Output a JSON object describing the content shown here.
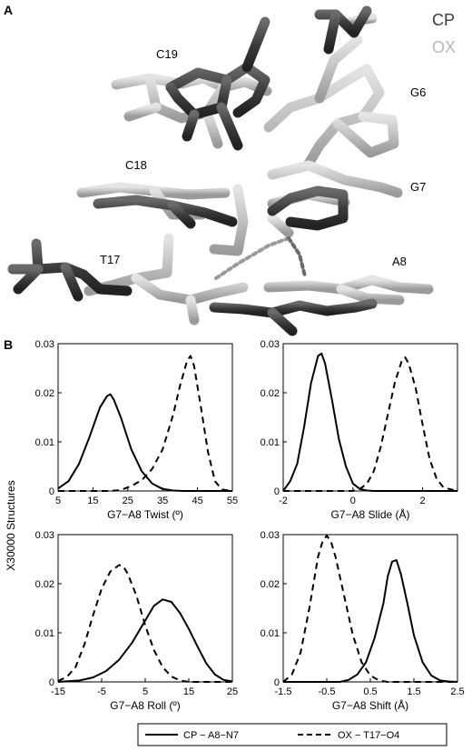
{
  "panel_a": {
    "letter": "A",
    "legend": [
      {
        "label": "CP",
        "color": "#3a3a3a"
      },
      {
        "label": "OX",
        "color": "#b8b8b8"
      }
    ],
    "residue_labels": [
      "C19",
      "G6",
      "C18",
      "G7",
      "T17",
      "A8"
    ]
  },
  "panel_b": {
    "letter": "B",
    "ylabel": "X30000 Structures"
  },
  "legend": {
    "items": [
      {
        "label": "CP − A8−N7",
        "style": "solid"
      },
      {
        "label": "OX − T17−O4",
        "style": "dashed"
      }
    ]
  },
  "chart_data": [
    {
      "type": "line",
      "xlabel": "G7−A8 Twist (º)",
      "xlim": [
        5,
        55
      ],
      "xticks": [
        5,
        15,
        25,
        35,
        45,
        55
      ],
      "ylim": [
        0,
        0.03
      ],
      "yticks": [
        "0",
        "0.01",
        "0.02",
        "0.03"
      ],
      "series": [
        {
          "style": "solid",
          "x": [
            5,
            8,
            11,
            14,
            17,
            19,
            20,
            21,
            23,
            26,
            29,
            32,
            35,
            38,
            41,
            44,
            47,
            50,
            53,
            55
          ],
          "y": [
            0.0005,
            0.002,
            0.0055,
            0.011,
            0.017,
            0.0193,
            0.0197,
            0.0186,
            0.015,
            0.0085,
            0.004,
            0.0015,
            0.0004,
            0.0001,
            0,
            0,
            0,
            0,
            0,
            0
          ]
        },
        {
          "style": "dashed",
          "x": [
            5,
            15,
            20,
            23,
            26,
            29,
            32,
            35,
            38,
            40,
            42,
            43,
            44,
            46,
            48,
            50,
            52,
            55
          ],
          "y": [
            0,
            0,
            0,
            0.0002,
            0.001,
            0.0022,
            0.0045,
            0.0085,
            0.0155,
            0.0215,
            0.0265,
            0.0275,
            0.0255,
            0.017,
            0.008,
            0.002,
            0.0003,
            0
          ]
        }
      ]
    },
    {
      "type": "line",
      "xlabel": "G7−A8 Slide (Å)",
      "xlim": [
        -2,
        3
      ],
      "xticks": [
        -2,
        0,
        2
      ],
      "ylim": [
        0,
        0.03
      ],
      "yticks": [
        "0",
        "0.01",
        "0.02",
        "0.03"
      ],
      "series": [
        {
          "style": "solid",
          "x": [
            -2,
            -1.8,
            -1.6,
            -1.4,
            -1.2,
            -1.0,
            -0.9,
            -0.8,
            -0.6,
            -0.4,
            -0.2,
            0.0,
            0.2,
            0.4,
            0.6,
            3
          ],
          "y": [
            0,
            0.002,
            0.0055,
            0.013,
            0.022,
            0.0275,
            0.028,
            0.026,
            0.0185,
            0.0105,
            0.005,
            0.0015,
            0.0004,
            0.0001,
            0,
            0
          ]
        },
        {
          "style": "dashed",
          "x": [
            -2,
            0,
            0.2,
            0.4,
            0.6,
            0.8,
            1.0,
            1.2,
            1.4,
            1.5,
            1.6,
            1.8,
            2.0,
            2.2,
            2.4,
            2.6,
            3
          ],
          "y": [
            0,
            0,
            0.0004,
            0.0015,
            0.004,
            0.009,
            0.0155,
            0.022,
            0.0265,
            0.0272,
            0.026,
            0.021,
            0.0135,
            0.0065,
            0.0025,
            0.0007,
            0
          ]
        }
      ]
    },
    {
      "type": "line",
      "xlabel": "G7−A8 Roll (º)",
      "xlim": [
        -15,
        25
      ],
      "xticks": [
        -15,
        -5,
        5,
        15,
        25
      ],
      "ylim": [
        0,
        0.03
      ],
      "yticks": [
        "0",
        "0.01",
        "0.02",
        "0.03"
      ],
      "series": [
        {
          "style": "solid",
          "x": [
            -15,
            -10,
            -7,
            -4,
            -1,
            2,
            5,
            7,
            9,
            11,
            13,
            15,
            17,
            19,
            21,
            23,
            25
          ],
          "y": [
            0,
            0.0003,
            0.0009,
            0.0022,
            0.0045,
            0.008,
            0.0125,
            0.0155,
            0.0168,
            0.0163,
            0.014,
            0.0108,
            0.0072,
            0.0038,
            0.0015,
            0.0004,
            0.0001
          ]
        },
        {
          "style": "dashed",
          "x": [
            -15,
            -13,
            -11,
            -9,
            -7,
            -5,
            -3,
            -1,
            0,
            1,
            3,
            5,
            7,
            9,
            11,
            13,
            15,
            25
          ],
          "y": [
            0.0002,
            0.001,
            0.003,
            0.0075,
            0.0135,
            0.019,
            0.0225,
            0.0238,
            0.0235,
            0.022,
            0.0175,
            0.0115,
            0.0065,
            0.003,
            0.0011,
            0.0003,
            0,
            0
          ]
        }
      ]
    },
    {
      "type": "line",
      "xlabel": "G7−A8 Shift (Å)",
      "xlim": [
        -1.5,
        2.5
      ],
      "xticks": [
        -1.5,
        -0.5,
        0.5,
        1.5,
        2.5
      ],
      "ylim": [
        0,
        0.03
      ],
      "yticks": [
        "0",
        "0.01",
        "0.02",
        "0.03"
      ],
      "series": [
        {
          "style": "solid",
          "x": [
            -1.5,
            -0.2,
            0.0,
            0.2,
            0.4,
            0.6,
            0.8,
            0.9,
            1.0,
            1.1,
            1.2,
            1.35,
            1.5,
            1.7,
            1.9,
            2.1,
            2.3,
            2.5
          ],
          "y": [
            0,
            0,
            0.0004,
            0.0015,
            0.004,
            0.009,
            0.016,
            0.0215,
            0.0245,
            0.0248,
            0.022,
            0.016,
            0.0095,
            0.004,
            0.0013,
            0.0003,
            0.0001,
            0
          ]
        },
        {
          "style": "dashed",
          "x": [
            -1.5,
            -1.3,
            -1.1,
            -0.9,
            -0.7,
            -0.6,
            -0.5,
            -0.4,
            -0.3,
            -0.1,
            0.1,
            0.3,
            0.5,
            0.7,
            0.9,
            2.5
          ],
          "y": [
            0,
            0.0015,
            0.006,
            0.015,
            0.0255,
            0.0285,
            0.0298,
            0.0285,
            0.0255,
            0.0175,
            0.0095,
            0.004,
            0.0013,
            0.0003,
            0,
            0
          ]
        }
      ]
    }
  ]
}
